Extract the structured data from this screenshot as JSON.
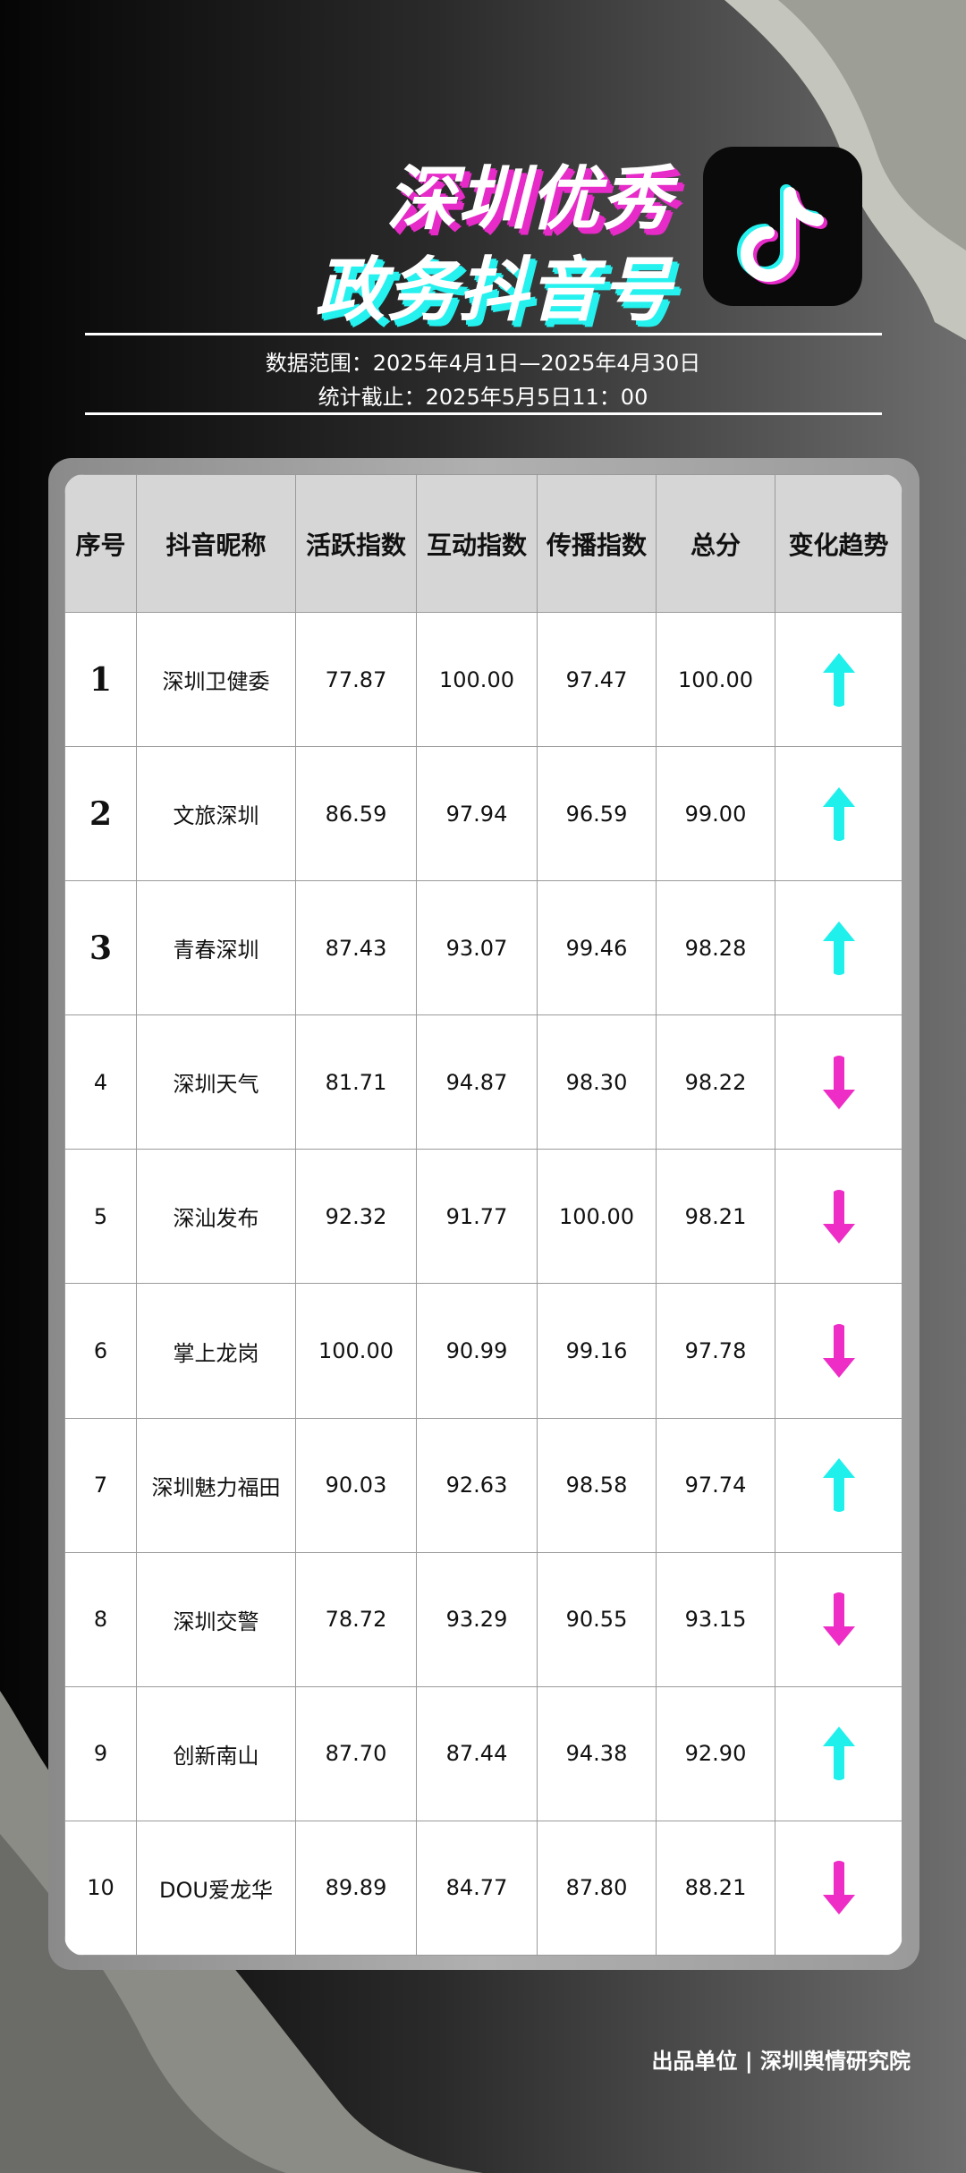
{
  "header": {
    "title_line1": "深圳优秀",
    "title_line2": "政务抖音号",
    "date_range": "数据范围：2025年4月1日—2025年4月30日",
    "cutoff": "统计截止：2025年5月5日11：00",
    "logo": "douyin-logo-icon"
  },
  "table": {
    "columns": [
      "序号",
      "抖音昵称",
      "活跃指数",
      "互动指数",
      "传播指数",
      "总分",
      "变化趋势"
    ],
    "rows": [
      {
        "rank": "1",
        "name": "深圳卫健委",
        "active": "77.87",
        "interact": "100.00",
        "spread": "97.47",
        "total": "100.00",
        "trend": "up"
      },
      {
        "rank": "2",
        "name": "文旅深圳",
        "active": "86.59",
        "interact": "97.94",
        "spread": "96.59",
        "total": "99.00",
        "trend": "up"
      },
      {
        "rank": "3",
        "name": "青春深圳",
        "active": "87.43",
        "interact": "93.07",
        "spread": "99.46",
        "total": "98.28",
        "trend": "up"
      },
      {
        "rank": "4",
        "name": "深圳天气",
        "active": "81.71",
        "interact": "94.87",
        "spread": "98.30",
        "total": "98.22",
        "trend": "down"
      },
      {
        "rank": "5",
        "name": "深汕发布",
        "active": "92.32",
        "interact": "91.77",
        "spread": "100.00",
        "total": "98.21",
        "trend": "down"
      },
      {
        "rank": "6",
        "name": "掌上龙岗",
        "active": "100.00",
        "interact": "90.99",
        "spread": "99.16",
        "total": "97.78",
        "trend": "down"
      },
      {
        "rank": "7",
        "name": "深圳魅力福田",
        "active": "90.03",
        "interact": "92.63",
        "spread": "98.58",
        "total": "97.74",
        "trend": "up"
      },
      {
        "rank": "8",
        "name": "深圳交警",
        "active": "78.72",
        "interact": "93.29",
        "spread": "90.55",
        "total": "93.15",
        "trend": "down"
      },
      {
        "rank": "9",
        "name": "创新南山",
        "active": "87.70",
        "interact": "87.44",
        "spread": "94.38",
        "total": "92.90",
        "trend": "up"
      },
      {
        "rank": "10",
        "name": "DOU爱龙华",
        "active": "89.89",
        "interact": "84.77",
        "spread": "87.80",
        "total": "88.21",
        "trend": "down"
      }
    ]
  },
  "colors": {
    "up": "#1ff0ec",
    "down": "#ee2cc6"
  },
  "footer": "出品单位 | 深圳舆情研究院"
}
